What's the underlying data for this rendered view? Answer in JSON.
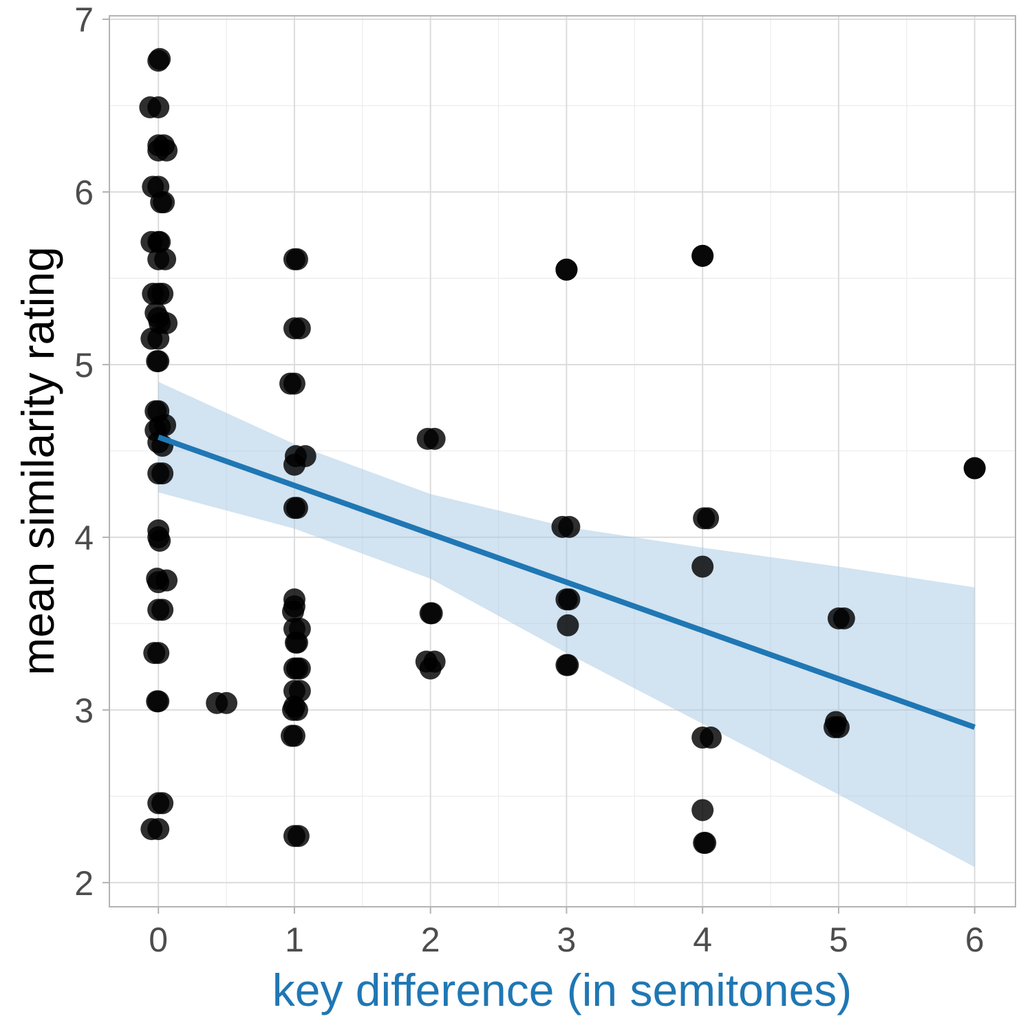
{
  "chart_data": {
    "type": "scatter",
    "title": "",
    "xlabel": "key difference (in semitones)",
    "ylabel": "mean similarity rating",
    "xlim": [
      -0.36,
      6.3
    ],
    "ylim": [
      1.86,
      7.02
    ],
    "x_ticks": [
      "0",
      "1",
      "2",
      "3",
      "4",
      "5",
      "6"
    ],
    "y_ticks": [
      "2",
      "3",
      "4",
      "5",
      "6",
      "7"
    ],
    "grid": true,
    "legend": "none",
    "colors": {
      "points": "#000000",
      "fit_line": "#1f77b4",
      "ribbon": "#a6c8e3",
      "xlabel": "#1f77b4",
      "grid": "#dcdcdc",
      "panel_border": "#b3b3b3"
    },
    "points": [
      {
        "x": 0.0,
        "y": 6.76
      },
      {
        "x": 0.01,
        "y": 6.77
      },
      {
        "x": -0.06,
        "y": 6.49
      },
      {
        "x": 0.0,
        "y": 6.49
      },
      {
        "x": 0.0,
        "y": 6.27
      },
      {
        "x": 0.04,
        "y": 6.27
      },
      {
        "x": 0.06,
        "y": 6.24
      },
      {
        "x": 0.0,
        "y": 6.24
      },
      {
        "x": -0.04,
        "y": 6.03
      },
      {
        "x": 0.0,
        "y": 6.03
      },
      {
        "x": 0.02,
        "y": 5.94
      },
      {
        "x": 0.04,
        "y": 5.94
      },
      {
        "x": -0.05,
        "y": 5.71
      },
      {
        "x": 0.0,
        "y": 5.71
      },
      {
        "x": 0.01,
        "y": 5.71
      },
      {
        "x": 0.0,
        "y": 5.61
      },
      {
        "x": 0.05,
        "y": 5.61
      },
      {
        "x": -0.04,
        "y": 5.41
      },
      {
        "x": 0.0,
        "y": 5.41
      },
      {
        "x": 0.03,
        "y": 5.41
      },
      {
        "x": -0.02,
        "y": 5.3
      },
      {
        "x": 0.0,
        "y": 5.27
      },
      {
        "x": 0.01,
        "y": 5.24
      },
      {
        "x": 0.06,
        "y": 5.24
      },
      {
        "x": -0.05,
        "y": 5.15
      },
      {
        "x": 0.0,
        "y": 5.15
      },
      {
        "x": -0.01,
        "y": 5.02
      },
      {
        "x": 0.0,
        "y": 5.02
      },
      {
        "x": -0.02,
        "y": 4.73
      },
      {
        "x": 0.0,
        "y": 4.73
      },
      {
        "x": 0.05,
        "y": 4.65
      },
      {
        "x": 0.01,
        "y": 4.64
      },
      {
        "x": -0.02,
        "y": 4.62
      },
      {
        "x": 0.0,
        "y": 4.55
      },
      {
        "x": 0.03,
        "y": 4.53
      },
      {
        "x": 0.0,
        "y": 4.37
      },
      {
        "x": 0.03,
        "y": 4.37
      },
      {
        "x": 0.0,
        "y": 4.04
      },
      {
        "x": 0.0,
        "y": 4.0
      },
      {
        "x": 0.01,
        "y": 3.98
      },
      {
        "x": -0.01,
        "y": 3.76
      },
      {
        "x": 0.06,
        "y": 3.75
      },
      {
        "x": 0.0,
        "y": 3.74
      },
      {
        "x": 0.0,
        "y": 3.58
      },
      {
        "x": 0.03,
        "y": 3.58
      },
      {
        "x": -0.03,
        "y": 3.33
      },
      {
        "x": 0.0,
        "y": 3.33
      },
      {
        "x": -0.01,
        "y": 3.05
      },
      {
        "x": 0.0,
        "y": 3.05
      },
      {
        "x": 0.0,
        "y": 2.46
      },
      {
        "x": 0.03,
        "y": 2.46
      },
      {
        "x": -0.05,
        "y": 2.31
      },
      {
        "x": 0.0,
        "y": 2.31
      },
      {
        "x": 0.43,
        "y": 3.04
      },
      {
        "x": 0.5,
        "y": 3.04
      },
      {
        "x": 1.0,
        "y": 5.61
      },
      {
        "x": 1.02,
        "y": 5.61
      },
      {
        "x": 1.0,
        "y": 5.21
      },
      {
        "x": 1.04,
        "y": 5.21
      },
      {
        "x": 0.97,
        "y": 4.89
      },
      {
        "x": 1.0,
        "y": 4.89
      },
      {
        "x": 1.01,
        "y": 4.47
      },
      {
        "x": 1.08,
        "y": 4.47
      },
      {
        "x": 1.0,
        "y": 4.42
      },
      {
        "x": 1.0,
        "y": 4.17
      },
      {
        "x": 1.02,
        "y": 4.17
      },
      {
        "x": 1.0,
        "y": 3.64
      },
      {
        "x": 1.0,
        "y": 3.6
      },
      {
        "x": 0.99,
        "y": 3.57
      },
      {
        "x": 1.04,
        "y": 3.47
      },
      {
        "x": 1.0,
        "y": 3.47
      },
      {
        "x": 1.01,
        "y": 3.39
      },
      {
        "x": 1.02,
        "y": 3.39
      },
      {
        "x": 1.0,
        "y": 3.24
      },
      {
        "x": 1.04,
        "y": 3.24
      },
      {
        "x": 1.02,
        "y": 3.24
      },
      {
        "x": 1.0,
        "y": 3.11
      },
      {
        "x": 1.04,
        "y": 3.11
      },
      {
        "x": 1.0,
        "y": 3.02
      },
      {
        "x": 1.02,
        "y": 3.0
      },
      {
        "x": 0.99,
        "y": 3.0
      },
      {
        "x": 0.98,
        "y": 2.85
      },
      {
        "x": 1.0,
        "y": 2.85
      },
      {
        "x": 1.0,
        "y": 2.27
      },
      {
        "x": 1.03,
        "y": 2.27
      },
      {
        "x": 1.98,
        "y": 4.57
      },
      {
        "x": 2.03,
        "y": 4.57
      },
      {
        "x": 2.0,
        "y": 3.56
      },
      {
        "x": 2.01,
        "y": 3.56
      },
      {
        "x": 1.97,
        "y": 3.28
      },
      {
        "x": 2.0,
        "y": 3.24
      },
      {
        "x": 2.03,
        "y": 3.28
      },
      {
        "x": 3.0,
        "y": 5.55
      },
      {
        "x": 3.0,
        "y": 5.55
      },
      {
        "x": 2.97,
        "y": 4.06
      },
      {
        "x": 3.02,
        "y": 4.06
      },
      {
        "x": 3.0,
        "y": 3.64
      },
      {
        "x": 3.02,
        "y": 3.64
      },
      {
        "x": 3.01,
        "y": 3.49
      },
      {
        "x": 3.0,
        "y": 3.26
      },
      {
        "x": 3.01,
        "y": 3.26
      },
      {
        "x": 4.0,
        "y": 5.63
      },
      {
        "x": 4.0,
        "y": 5.63
      },
      {
        "x": 4.01,
        "y": 4.11
      },
      {
        "x": 4.04,
        "y": 4.11
      },
      {
        "x": 4.0,
        "y": 3.83
      },
      {
        "x": 4.0,
        "y": 2.84
      },
      {
        "x": 4.06,
        "y": 2.84
      },
      {
        "x": 4.0,
        "y": 2.42
      },
      {
        "x": 4.01,
        "y": 2.23
      },
      {
        "x": 4.02,
        "y": 2.23
      },
      {
        "x": 5.0,
        "y": 3.53
      },
      {
        "x": 5.04,
        "y": 3.53
      },
      {
        "x": 4.98,
        "y": 2.93
      },
      {
        "x": 5.0,
        "y": 2.9
      },
      {
        "x": 4.97,
        "y": 2.9
      },
      {
        "x": 6.0,
        "y": 4.4
      },
      {
        "x": 6.0,
        "y": 4.4
      }
    ],
    "fit": {
      "x": [
        0,
        6
      ],
      "y": [
        4.58,
        2.9
      ]
    },
    "ribbon": {
      "x": [
        0,
        1,
        2,
        3,
        4,
        5,
        6
      ],
      "lower": [
        4.26,
        4.05,
        3.76,
        3.33,
        2.92,
        2.51,
        2.09
      ],
      "upper": [
        4.9,
        4.54,
        4.25,
        4.06,
        3.94,
        3.83,
        3.71
      ]
    }
  }
}
